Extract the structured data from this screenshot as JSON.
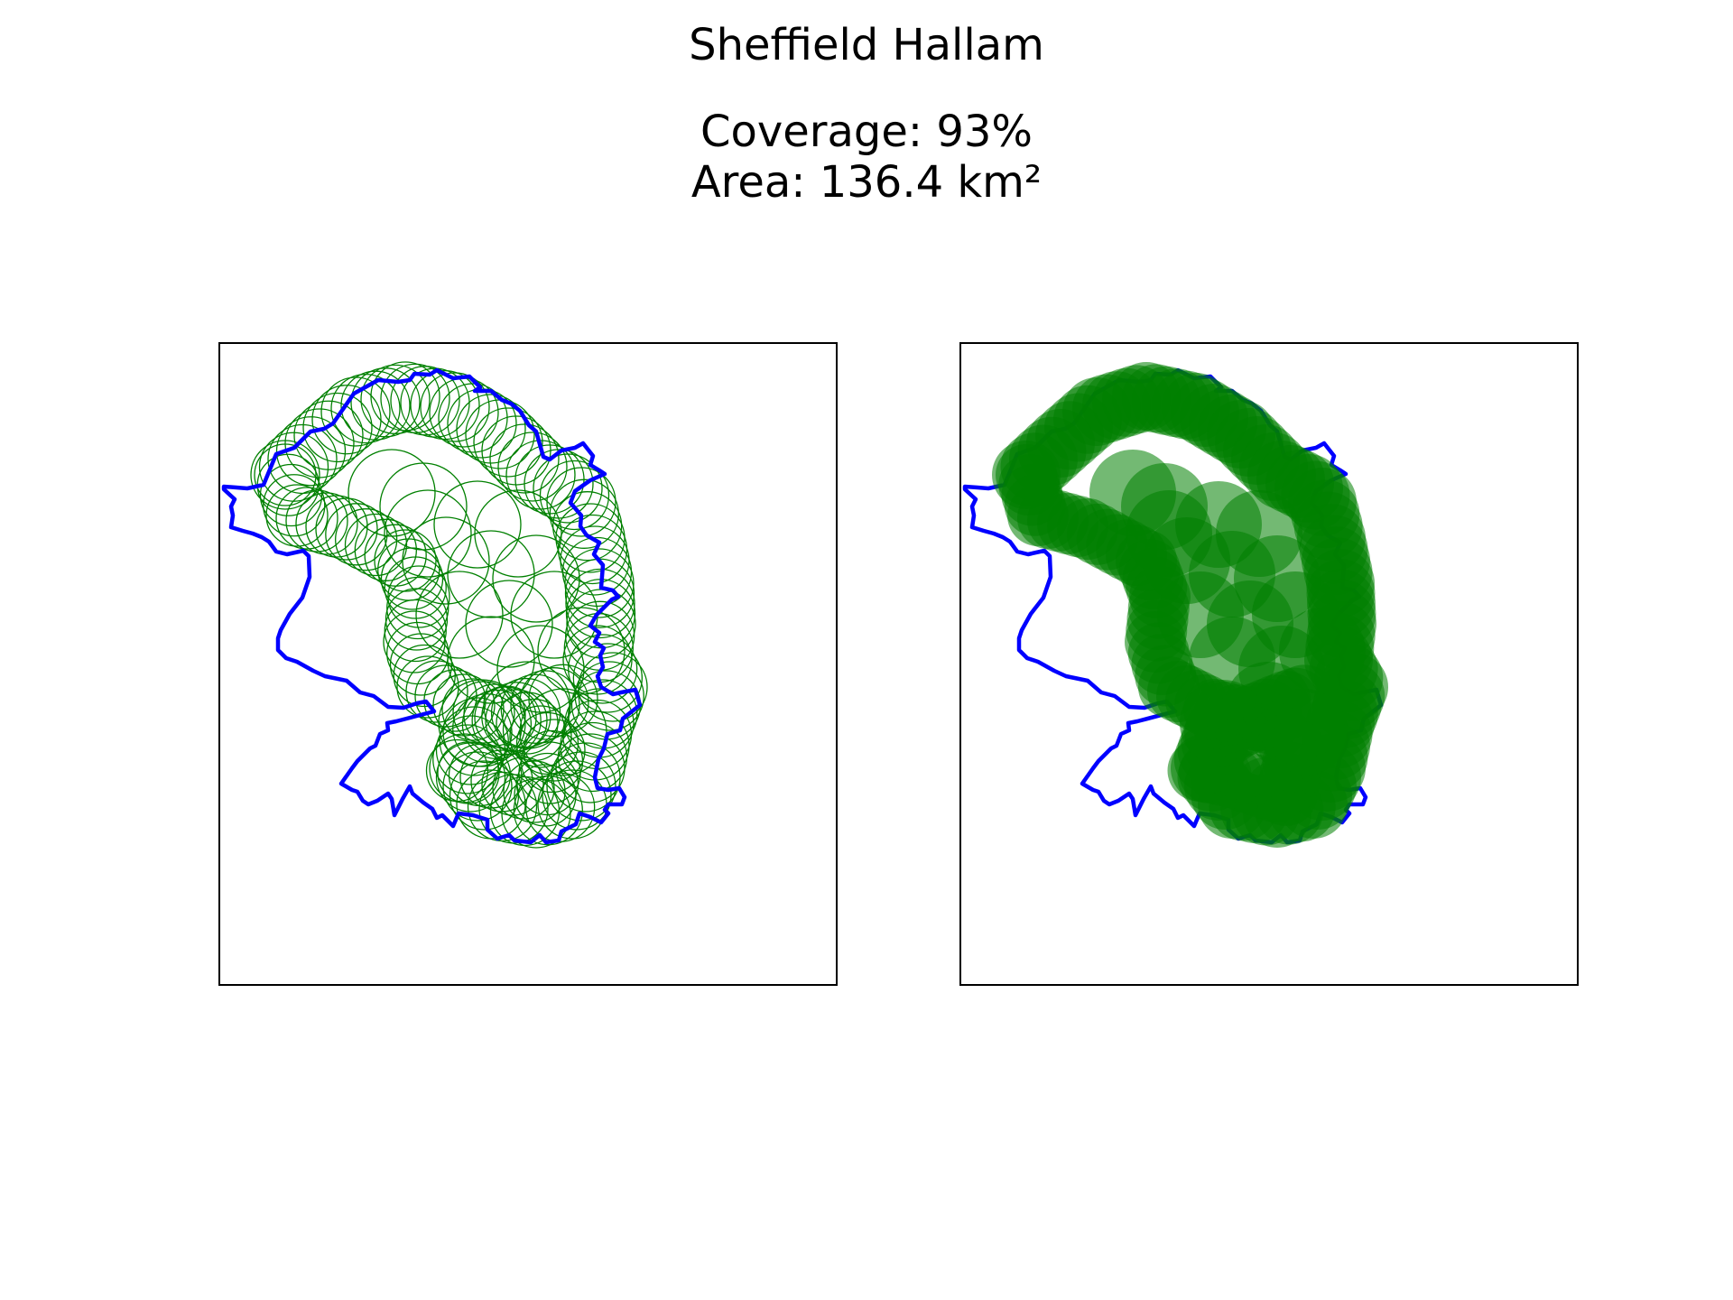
{
  "figure": {
    "title": "Sheffield Hallam",
    "coverage_line": "Coverage: 93%",
    "area_line": "Area: 136.4 km²"
  },
  "colors": {
    "boundary": "#0000ff",
    "circle": "#008000",
    "background": "#ffffff",
    "frame": "#000000"
  },
  "panels": [
    {
      "name": "circle-outlines",
      "style": "outline"
    },
    {
      "name": "circle-fill",
      "style": "filled",
      "fill_alpha": 0.55
    }
  ]
}
